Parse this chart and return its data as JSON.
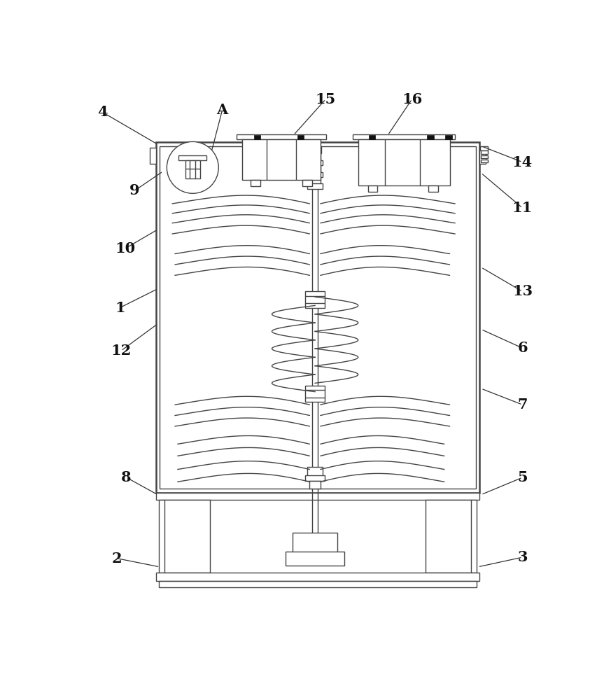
{
  "bg_color": "#ffffff",
  "lc": "#444444",
  "lw": 1.0,
  "tlw": 1.8
}
